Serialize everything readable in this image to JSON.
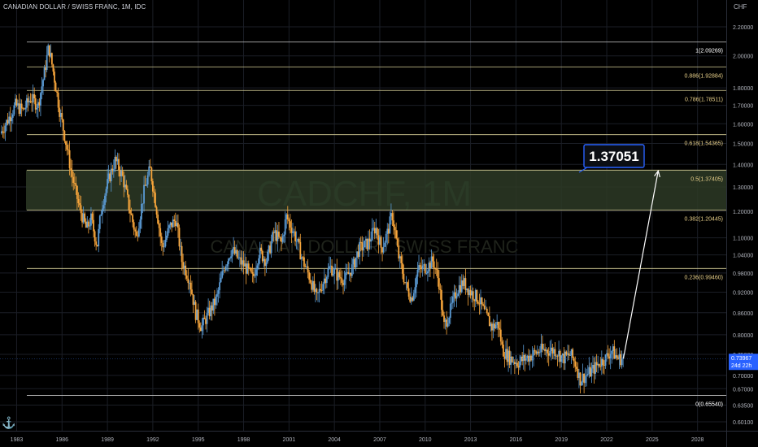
{
  "header": {
    "symbol": "CANADIAN DOLLAR / SWISS FRANC, 1M, IDC"
  },
  "axis": {
    "currency": "CHF",
    "price_ticks": [
      "2.20000",
      "2.00000",
      "1.80000",
      "1.70000",
      "1.60000",
      "1.50000",
      "1.40000",
      "1.30000",
      "1.20000",
      "1.10000",
      "1.04000",
      "0.98000",
      "0.92000",
      "0.86000",
      "0.80000",
      "0.75000",
      "0.70000",
      "0.67000",
      "0.63500",
      "0.60100"
    ],
    "year_ticks": [
      "1983",
      "1986",
      "1989",
      "1992",
      "1995",
      "1998",
      "2001",
      "2004",
      "2007",
      "2010",
      "2013",
      "2016",
      "2019",
      "2022",
      "2025",
      "2028"
    ]
  },
  "watermark": {
    "ticker": "CADCHF, 1M",
    "name": "CANADIAN DOLLAR / SWISS FRANC"
  },
  "current_price": {
    "value": "0.73967",
    "countdown": "24d 22h"
  },
  "target_label": "1.37051",
  "colors": {
    "up": "#5b9bd5",
    "down": "#f7a53b",
    "fib_line": "#d8cf98",
    "fib_text": "#e8d08a",
    "zone": "#2d3a26",
    "target_box": "#2962ff",
    "grid": "#1b1e26",
    "text": "#b2b5be"
  },
  "chart_data": {
    "type": "candlestick",
    "timeframe": "1M",
    "scale": "log",
    "ylim": [
      0.601,
      2.2
    ],
    "x_range": [
      1981.9,
      2029.9
    ],
    "fib_levels": [
      {
        "label": "1(2.09269)",
        "value": 2.09269
      },
      {
        "label": "0.886(1.92884)",
        "value": 1.92884
      },
      {
        "label": "0.786(1.78511)",
        "value": 1.78511
      },
      {
        "label": "0.618(1.54365)",
        "value": 1.54365
      },
      {
        "label": "0.5(1.37405)",
        "value": 1.37405
      },
      {
        "label": "0.382(1.20445)",
        "value": 1.20445
      },
      {
        "label": "0.236(0.99460)",
        "value": 0.9946
      },
      {
        "label": "0(0.65540)",
        "value": 0.6554
      }
    ],
    "highlight_zone": [
      1.20445,
      1.37405
    ],
    "price_path": [
      [
        1982.0,
        1.55
      ],
      [
        1982.5,
        1.62
      ],
      [
        1983.0,
        1.7
      ],
      [
        1983.5,
        1.67
      ],
      [
        1984.0,
        1.74
      ],
      [
        1984.5,
        1.7
      ],
      [
        1984.9,
        1.88
      ],
      [
        1985.2,
        2.06
      ],
      [
        1985.5,
        1.9
      ],
      [
        1985.9,
        1.68
      ],
      [
        1986.3,
        1.52
      ],
      [
        1986.7,
        1.36
      ],
      [
        1987.2,
        1.22
      ],
      [
        1987.7,
        1.13
      ],
      [
        1988.0,
        1.17
      ],
      [
        1988.4,
        1.07
      ],
      [
        1988.7,
        1.22
      ],
      [
        1989.2,
        1.34
      ],
      [
        1989.6,
        1.42
      ],
      [
        1990.1,
        1.34
      ],
      [
        1990.5,
        1.22
      ],
      [
        1991.0,
        1.1
      ],
      [
        1991.5,
        1.28
      ],
      [
        1991.9,
        1.38
      ],
      [
        1992.3,
        1.22
      ],
      [
        1992.7,
        1.06
      ],
      [
        1993.2,
        1.14
      ],
      [
        1993.6,
        1.17
      ],
      [
        1994.0,
        1.02
      ],
      [
        1994.5,
        0.96
      ],
      [
        1994.9,
        0.86
      ],
      [
        1995.3,
        0.82
      ],
      [
        1995.8,
        0.86
      ],
      [
        1996.3,
        0.9
      ],
      [
        1996.8,
        1.0
      ],
      [
        1997.3,
        1.06
      ],
      [
        1997.8,
        1.02
      ],
      [
        1998.2,
        1.0
      ],
      [
        1998.7,
        0.96
      ],
      [
        1999.1,
        1.05
      ],
      [
        1999.6,
        1.02
      ],
      [
        2000.1,
        1.12
      ],
      [
        2000.6,
        1.08
      ],
      [
        2000.9,
        1.18
      ],
      [
        2001.4,
        1.12
      ],
      [
        2002.0,
        1.02
      ],
      [
        2002.5,
        0.96
      ],
      [
        2002.9,
        0.9
      ],
      [
        2003.4,
        0.96
      ],
      [
        2003.8,
        1.0
      ],
      [
        2004.3,
        0.97
      ],
      [
        2004.8,
        0.96
      ],
      [
        2005.3,
        1.0
      ],
      [
        2005.7,
        1.06
      ],
      [
        2006.3,
        1.08
      ],
      [
        2006.8,
        1.14
      ],
      [
        2007.2,
        1.06
      ],
      [
        2007.6,
        1.12
      ],
      [
        2007.9,
        1.19
      ],
      [
        2008.3,
        1.04
      ],
      [
        2008.8,
        0.94
      ],
      [
        2009.2,
        0.9
      ],
      [
        2009.6,
        0.99
      ],
      [
        2010.2,
        1.0
      ],
      [
        2010.6,
        1.02
      ],
      [
        2011.0,
        0.95
      ],
      [
        2011.3,
        0.82
      ],
      [
        2011.7,
        0.86
      ],
      [
        2012.2,
        0.93
      ],
      [
        2012.6,
        0.95
      ],
      [
        2013.1,
        0.92
      ],
      [
        2013.6,
        0.9
      ],
      [
        2014.0,
        0.86
      ],
      [
        2014.5,
        0.82
      ],
      [
        2014.9,
        0.83
      ],
      [
        2015.2,
        0.76
      ],
      [
        2015.7,
        0.74
      ],
      [
        2016.2,
        0.73
      ],
      [
        2016.7,
        0.74
      ],
      [
        2017.2,
        0.75
      ],
      [
        2017.7,
        0.76
      ],
      [
        2018.2,
        0.76
      ],
      [
        2018.7,
        0.76
      ],
      [
        2019.2,
        0.74
      ],
      [
        2019.7,
        0.75
      ],
      [
        2020.1,
        0.72
      ],
      [
        2020.3,
        0.69
      ],
      [
        2020.7,
        0.7
      ],
      [
        2021.1,
        0.71
      ],
      [
        2021.6,
        0.73
      ],
      [
        2022.0,
        0.74
      ],
      [
        2022.4,
        0.76
      ],
      [
        2022.8,
        0.74
      ],
      [
        2023.1,
        0.73967
      ]
    ],
    "projection": {
      "from": [
        2023.1,
        0.73967
      ],
      "to": [
        2025.4,
        1.37051
      ]
    }
  }
}
